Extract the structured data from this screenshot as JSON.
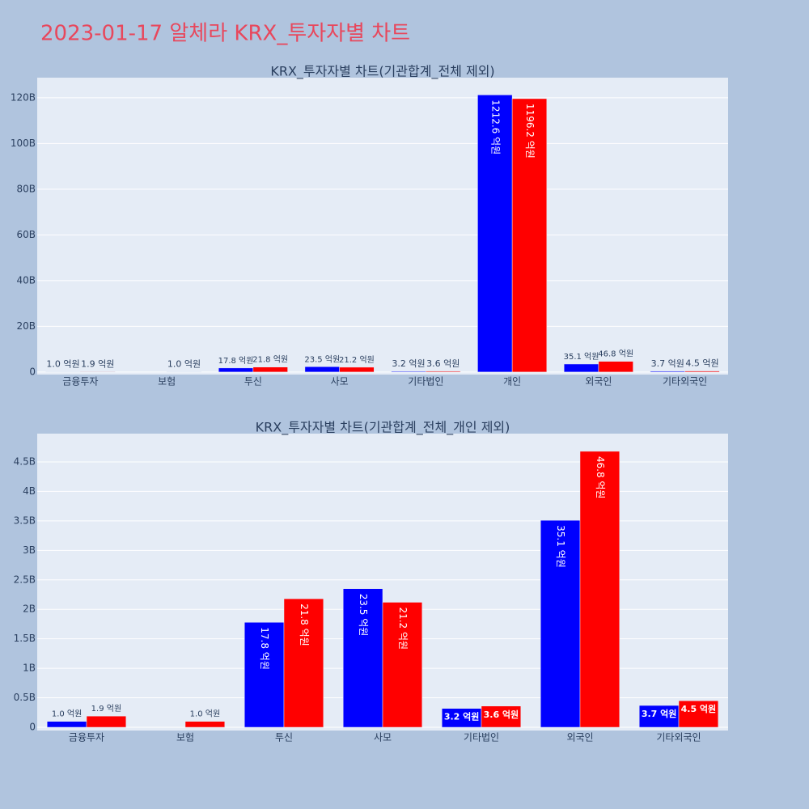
{
  "title": "2023-01-17 알체라 KRX_투자자별 차트",
  "chart_data": [
    {
      "type": "bar",
      "title": "KRX_투자자별 차트(기관합계_전체 제외)",
      "categories": [
        "금융투자",
        "보험",
        "투신",
        "사모",
        "기타법인",
        "개인",
        "외국인",
        "기타외국인"
      ],
      "series": [
        {
          "color": "#0000ff",
          "values": [
            0.1,
            null,
            1.78,
            2.35,
            0.32,
            121.26,
            3.51,
            0.37
          ],
          "value_labels": [
            "1.0 억원",
            null,
            "17.8 억원",
            "23.5 억원",
            "3.2 억원",
            "1212.6 억원",
            "35.1 억원",
            "3.7 억원"
          ]
        },
        {
          "color": "#ff0000",
          "values": [
            0.19,
            0.1,
            2.18,
            2.12,
            0.36,
            119.62,
            4.68,
            0.45
          ],
          "value_labels": [
            "1.9 억원",
            "1.0 억원",
            "21.8 억원",
            "21.2 억원",
            "3.6 억원",
            "1196.2 억원",
            "46.8 억원",
            "4.5 억원"
          ]
        }
      ],
      "ylim": [
        -1.1,
        128.8
      ],
      "yticks": [
        0,
        {
          "value": 20,
          "label": "20B"
        },
        {
          "value": 40,
          "label": "40B"
        },
        {
          "value": 60,
          "label": "60B"
        },
        {
          "value": 80,
          "label": "80B"
        },
        {
          "value": 100,
          "label": "100B"
        },
        {
          "value": 120,
          "label": "120B"
        }
      ],
      "grid": true
    },
    {
      "type": "bar",
      "title": "KRX_투자자별 차트(기관합계_전체_개인 제외)",
      "categories": [
        "금융투자",
        "보험",
        "투신",
        "사모",
        "기타법인",
        "외국인",
        "기타외국인"
      ],
      "series": [
        {
          "color": "#0000ff",
          "values": [
            0.1,
            null,
            1.78,
            2.35,
            0.32,
            3.51,
            0.37
          ],
          "value_labels": [
            "1.0 억원",
            null,
            "17.8 억원",
            "23.5 억원",
            "3.2 억원",
            "35.1 억원",
            "3.7 억원"
          ]
        },
        {
          "color": "#ff0000",
          "values": [
            0.19,
            0.1,
            2.18,
            2.12,
            0.36,
            4.68,
            0.45
          ],
          "value_labels": [
            "1.9 억원",
            "1.0 억원",
            "21.8 억원",
            "21.2 억원",
            "3.6 억원",
            "46.8 억원",
            "4.5 억원"
          ]
        }
      ],
      "ylim": [
        -0.055,
        4.98
      ],
      "yticks": [
        0,
        {
          "value": 0.5,
          "label": "0.5B"
        },
        {
          "value": 1,
          "label": "1B"
        },
        {
          "value": 1.5,
          "label": "1.5B"
        },
        {
          "value": 2,
          "label": "2B"
        },
        {
          "value": 2.5,
          "label": "2.5B"
        },
        {
          "value": 3,
          "label": "3B"
        },
        {
          "value": 3.5,
          "label": "3.5B"
        },
        {
          "value": 4,
          "label": "4B"
        },
        {
          "value": 4.5,
          "label": "4.5B"
        }
      ],
      "grid": true
    }
  ]
}
